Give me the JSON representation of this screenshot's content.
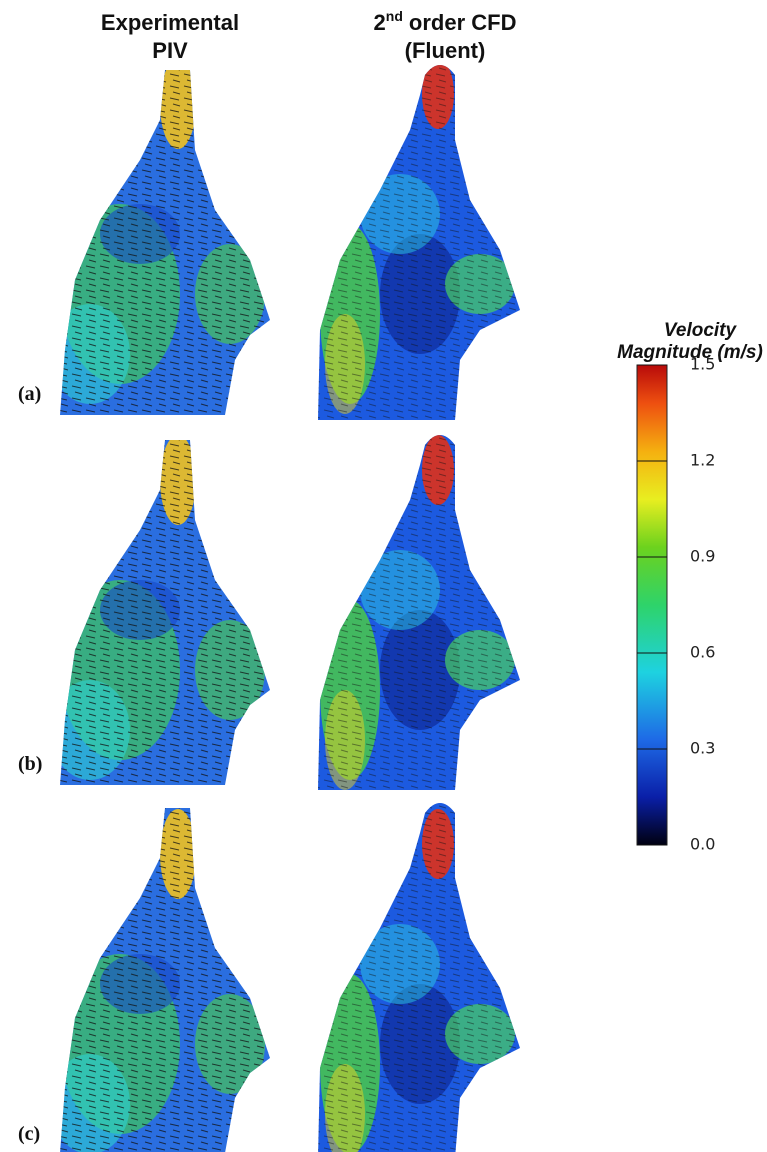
{
  "headers": {
    "piv": [
      "Experimental",
      "PIV"
    ],
    "cfd": {
      "base": "2",
      "superscript": "nd",
      "rest": "order CFD",
      "line2": "(Fluent)"
    }
  },
  "row_labels": [
    "(a)",
    "(b)",
    "(c)"
  ],
  "colorbar": {
    "title": [
      "Velocity",
      "Magnitude (m/s)"
    ],
    "range": [
      0,
      1.5
    ],
    "ticks": [
      1.5,
      1.2,
      0.9,
      0.6,
      0.3,
      {
        "value": 0,
        "label": "0.0"
      }
    ]
  }
}
